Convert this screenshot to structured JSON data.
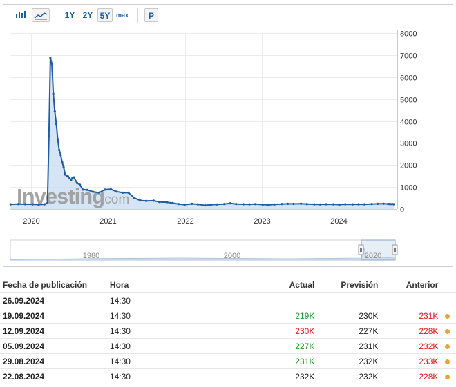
{
  "toolbar": {
    "ranges": [
      "1Y",
      "2Y",
      "5Y",
      "max"
    ],
    "print_label": "P",
    "selected_range": "5Y"
  },
  "watermark": {
    "brand": "Investing",
    "suffix": ".com"
  },
  "colors": {
    "line": "#1f5c9e",
    "fill": "#c7dcf1",
    "positive": "#1aa02b",
    "negative": "#e2141a",
    "dot": "#e8a533"
  },
  "chart_data": {
    "type": "area",
    "x_unit": "date",
    "y_ticks": [
      "8000",
      "7000",
      "6000",
      "5000",
      "4000",
      "3000",
      "2000",
      "1000",
      "0"
    ],
    "ylim": [
      0,
      8000
    ],
    "xlim": [
      "2019-09-25",
      "2024-10-05"
    ],
    "x_ticks": [
      {
        "label": "2020",
        "date": "2020-01-01"
      },
      {
        "label": "2021",
        "date": "2021-01-01"
      },
      {
        "label": "2022",
        "date": "2022-01-01"
      },
      {
        "label": "2023",
        "date": "2023-01-01"
      },
      {
        "label": "2024",
        "date": "2024-01-01"
      }
    ],
    "grid": true,
    "series": [
      {
        "points": [
          [
            "2019-09-26",
            215
          ],
          [
            "2019-11-01",
            225
          ],
          [
            "2019-12-05",
            220
          ],
          [
            "2020-01-09",
            215
          ],
          [
            "2020-02-06",
            205
          ],
          [
            "2020-03-05",
            215
          ],
          [
            "2020-03-19",
            280
          ],
          [
            "2020-03-26",
            3310
          ],
          [
            "2020-04-02",
            6870
          ],
          [
            "2020-04-09",
            6610
          ],
          [
            "2020-04-16",
            5240
          ],
          [
            "2020-04-23",
            4440
          ],
          [
            "2020-04-30",
            3870
          ],
          [
            "2020-05-07",
            3170
          ],
          [
            "2020-05-14",
            2680
          ],
          [
            "2020-05-21",
            2450
          ],
          [
            "2020-05-28",
            2120
          ],
          [
            "2020-06-04",
            1900
          ],
          [
            "2020-06-11",
            1570
          ],
          [
            "2020-06-18",
            1510
          ],
          [
            "2020-06-25",
            1480
          ],
          [
            "2020-07-02",
            1410
          ],
          [
            "2020-07-09",
            1310
          ],
          [
            "2020-07-16",
            1420
          ],
          [
            "2020-07-23",
            1440
          ],
          [
            "2020-08-06",
            1190
          ],
          [
            "2020-08-20",
            1100
          ],
          [
            "2020-09-03",
            880
          ],
          [
            "2020-09-24",
            870
          ],
          [
            "2020-10-22",
            780
          ],
          [
            "2020-11-19",
            740
          ],
          [
            "2020-12-17",
            880
          ],
          [
            "2021-01-14",
            900
          ],
          [
            "2021-02-11",
            790
          ],
          [
            "2021-03-11",
            740
          ],
          [
            "2021-04-08",
            740
          ],
          [
            "2021-05-06",
            500
          ],
          [
            "2021-06-03",
            390
          ],
          [
            "2021-07-01",
            370
          ],
          [
            "2021-08-05",
            380
          ],
          [
            "2021-09-02",
            320
          ],
          [
            "2021-10-07",
            310
          ],
          [
            "2021-11-04",
            270
          ],
          [
            "2021-12-02",
            225
          ],
          [
            "2021-12-30",
            200
          ],
          [
            "2022-02-03",
            240
          ],
          [
            "2022-03-03",
            215
          ],
          [
            "2022-04-07",
            170
          ],
          [
            "2022-05-05",
            200
          ],
          [
            "2022-06-02",
            210
          ],
          [
            "2022-07-07",
            230
          ],
          [
            "2022-08-04",
            260
          ],
          [
            "2022-09-01",
            230
          ],
          [
            "2022-10-06",
            220
          ],
          [
            "2022-11-03",
            215
          ],
          [
            "2022-12-01",
            225
          ],
          [
            "2023-01-05",
            205
          ],
          [
            "2023-02-02",
            190
          ],
          [
            "2023-03-02",
            210
          ],
          [
            "2023-04-06",
            230
          ],
          [
            "2023-05-04",
            240
          ],
          [
            "2023-06-01",
            235
          ],
          [
            "2023-07-06",
            245
          ],
          [
            "2023-08-03",
            230
          ],
          [
            "2023-09-07",
            215
          ],
          [
            "2023-10-05",
            210
          ],
          [
            "2023-11-02",
            220
          ],
          [
            "2023-12-07",
            215
          ],
          [
            "2024-01-04",
            205
          ],
          [
            "2024-02-01",
            220
          ],
          [
            "2024-03-07",
            215
          ],
          [
            "2024-04-04",
            220
          ],
          [
            "2024-05-02",
            215
          ],
          [
            "2024-06-06",
            230
          ],
          [
            "2024-07-04",
            240
          ],
          [
            "2024-08-01",
            245
          ],
          [
            "2024-08-22",
            232
          ],
          [
            "2024-08-29",
            231
          ],
          [
            "2024-09-05",
            227
          ],
          [
            "2024-09-12",
            230
          ],
          [
            "2024-09-19",
            219
          ]
        ]
      }
    ],
    "navigator": {
      "labels": [
        "1980",
        "2000",
        "2020"
      ]
    }
  },
  "table": {
    "headers": {
      "date": "Fecha de publicación",
      "hora": "Hora",
      "actual": "Actual",
      "prevision": "Previsión",
      "anterior": "Anterior"
    },
    "rows": [
      {
        "date": "26.09.2024",
        "hora": "14:30",
        "actual": "",
        "actual_color": "",
        "prevision": "",
        "anterior": "",
        "anterior_color": "",
        "dot": false
      },
      {
        "date": "19.09.2024",
        "hora": "14:30",
        "actual": "219K",
        "actual_color": "green",
        "prevision": "230K",
        "anterior": "231K",
        "anterior_color": "red",
        "dot": true
      },
      {
        "date": "12.09.2024",
        "hora": "14:30",
        "actual": "230K",
        "actual_color": "red",
        "prevision": "227K",
        "anterior": "228K",
        "anterior_color": "red",
        "dot": true
      },
      {
        "date": "05.09.2024",
        "hora": "14:30",
        "actual": "227K",
        "actual_color": "green",
        "prevision": "231K",
        "anterior": "232K",
        "anterior_color": "red",
        "dot": true
      },
      {
        "date": "29.08.2024",
        "hora": "14:30",
        "actual": "231K",
        "actual_color": "green",
        "prevision": "232K",
        "anterior": "233K",
        "anterior_color": "red",
        "dot": true
      },
      {
        "date": "22.08.2024",
        "hora": "14:30",
        "actual": "232K",
        "actual_color": "",
        "prevision": "232K",
        "anterior": "228K",
        "anterior_color": "red",
        "dot": true
      }
    ]
  }
}
